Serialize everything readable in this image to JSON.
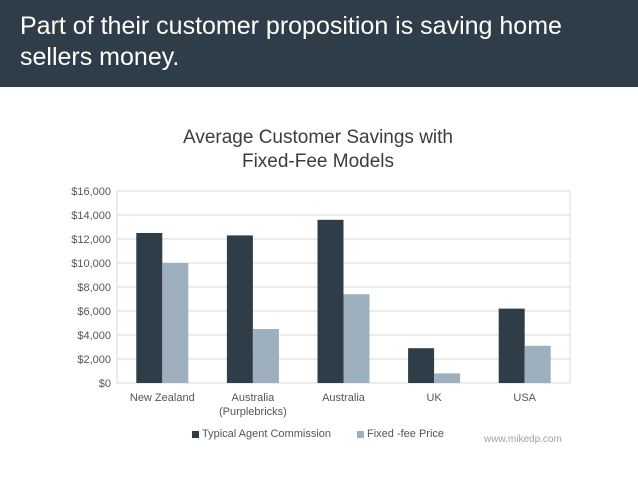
{
  "slide": {
    "title": "Part of their customer proposition is saving home sellers money.",
    "source": "www.mikedp.com"
  },
  "colors": {
    "header_bg": "#2f3d49",
    "series_1": "#2f3d49",
    "series_2": "#9eafbd",
    "grid": "#d9d9d9"
  },
  "chart_data": {
    "type": "bar",
    "title": "Average Customer Savings with Fixed-Fee Models",
    "title_lines": [
      "Average Customer Savings with",
      "Fixed-Fee Models"
    ],
    "categories": [
      "New Zealand",
      "Australia (Purplebricks)",
      "Australia",
      "UK",
      "USA"
    ],
    "category_lines": [
      [
        "New Zealand"
      ],
      [
        "Australia",
        "(Purplebricks)"
      ],
      [
        "Australia"
      ],
      [
        "UK"
      ],
      [
        "USA"
      ]
    ],
    "series": [
      {
        "name": "Typical Agent Commission",
        "values": [
          12500,
          12300,
          13600,
          2900,
          6200
        ]
      },
      {
        "name": "Fixed-fee Price",
        "values": [
          10000,
          4500,
          7400,
          800,
          3100
        ]
      }
    ],
    "legend_labels": [
      "Typical Agent Commission",
      "Fixed -fee Price"
    ],
    "ylim": [
      0,
      16000
    ],
    "yticks": [
      0,
      2000,
      4000,
      6000,
      8000,
      10000,
      12000,
      14000,
      16000
    ],
    "ytick_labels": [
      "$0",
      "$2,000",
      "$4,000",
      "$6,000",
      "$8,000",
      "$10,000",
      "$12,000",
      "$14,000",
      "$16,000"
    ],
    "xlabel": "",
    "ylabel": "",
    "grid": true,
    "legend_position": "bottom"
  }
}
